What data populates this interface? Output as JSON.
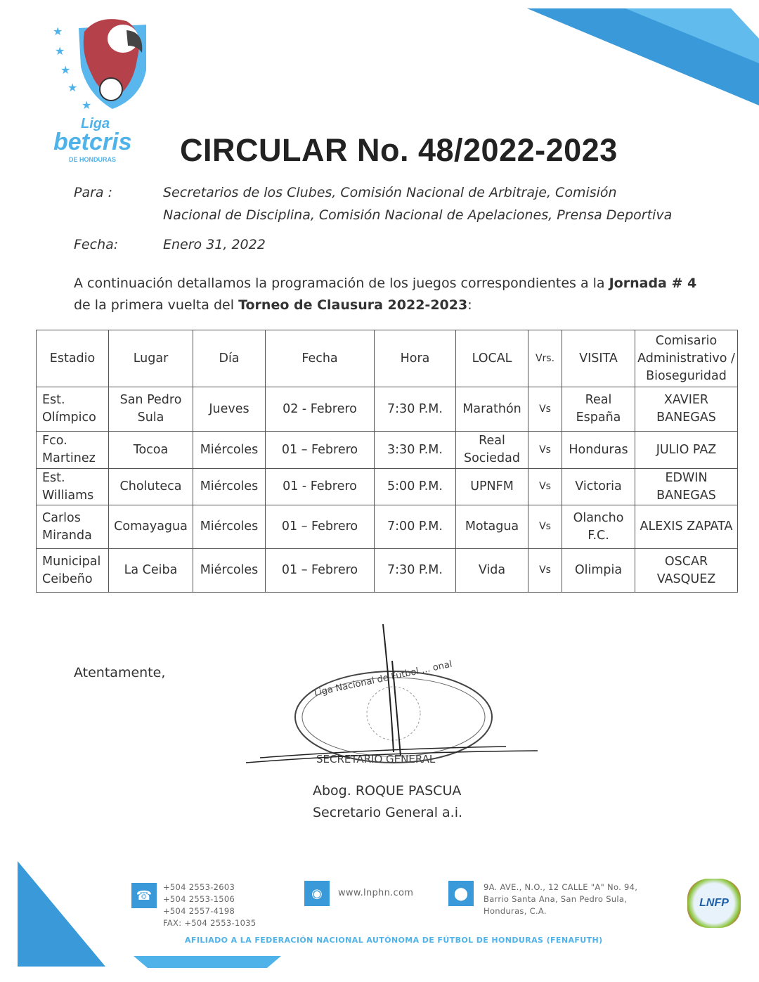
{
  "logo": {
    "text_line1": "Liga",
    "text_line2": "betcris",
    "text_line3": "DE HONDURAS"
  },
  "title": "CIRCULAR No. 48/2022-2023",
  "para_label": "Para   :",
  "para_line1": "Secretarios  de  los  Clubes, Comisión Nacional de Arbitraje, Comisión",
  "para_line2": "Nacional  de Disciplina, Comisión Nacional de Apelaciones, Prensa Deportiva",
  "fecha_label": "Fecha:",
  "fecha_value": "Enero 31,  2022",
  "intro": {
    "p1": "A continuación detallamos la programación de los juegos correspondientes a la ",
    "b1": "Jornada # 4",
    "p2": "de la primera vuelta del ",
    "b2": "Torneo de Clausura 2022-2023",
    ":": ":"
  },
  "table": {
    "headers": [
      "Estadio",
      "Lugar",
      "Día",
      "Fecha",
      "Hora",
      "LOCAL",
      "Vrs.",
      "VISITA",
      "Comisario Administrativo / Bioseguridad"
    ],
    "rows": [
      [
        "Est. Olímpico",
        "San Pedro Sula",
        "Jueves",
        "02 - Febrero",
        "7:30 P.M.",
        "Marathón",
        "Vs",
        "Real España",
        "XAVIER BANEGAS"
      ],
      [
        "Fco. Martinez",
        "Tocoa",
        "Miércoles",
        "01 – Febrero",
        "3:30 P.M.",
        "Real Sociedad",
        "Vs",
        "Honduras",
        "JULIO PAZ"
      ],
      [
        "Est. Williams",
        "Choluteca",
        "Miércoles",
        "01 - Febrero",
        "5:00 P.M.",
        "UPNFM",
        "Vs",
        "Victoria",
        "EDWIN BANEGAS"
      ],
      [
        "Carlos Miranda",
        "Comayagua",
        "Miércoles",
        "01 – Febrero",
        "7:00 P.M.",
        "Motagua",
        "Vs",
        "Olancho F.C.",
        "ALEXIS ZAPATA"
      ],
      [
        "Municipal Ceibeño",
        "La Ceiba",
        "Miércoles",
        "01 – Febrero",
        "7:30 P.M.",
        "Vida",
        "Vs",
        "Olimpia",
        "OSCAR VASQUEZ"
      ]
    ]
  },
  "closing": "Atentamente,",
  "stamp": {
    "top": "Liga Nacional de Fútbol ... onal",
    "bottom": "SECRETARIO GENERAL"
  },
  "signer_name": "Abog. ROQUE PASCUA",
  "signer_title": "Secretario General a.i.",
  "footer": {
    "phones": [
      "+504 2553-2603",
      "+504 2553-1506",
      "+504 2557-4198",
      "FAX: +504 2553-1035"
    ],
    "website": "www.lnphn.com",
    "address": [
      "9A. AVE., N.O., 12 CALLE \"A\" No. 94,",
      "Barrio Santa Ana, San Pedro Sula,",
      "Honduras, C.A."
    ],
    "lnfp_logo": "LNFP",
    "affiliation": "AFILIADO A LA FEDERACIÓN NACIONAL AUTÓNOMA DE FÚTBOL DE HONDURAS (FENAFUTH)"
  },
  "colors": {
    "brand_blue": "#3a9ad9",
    "light_blue": "#4fb3ea",
    "parrot_red": "#b5424a"
  }
}
